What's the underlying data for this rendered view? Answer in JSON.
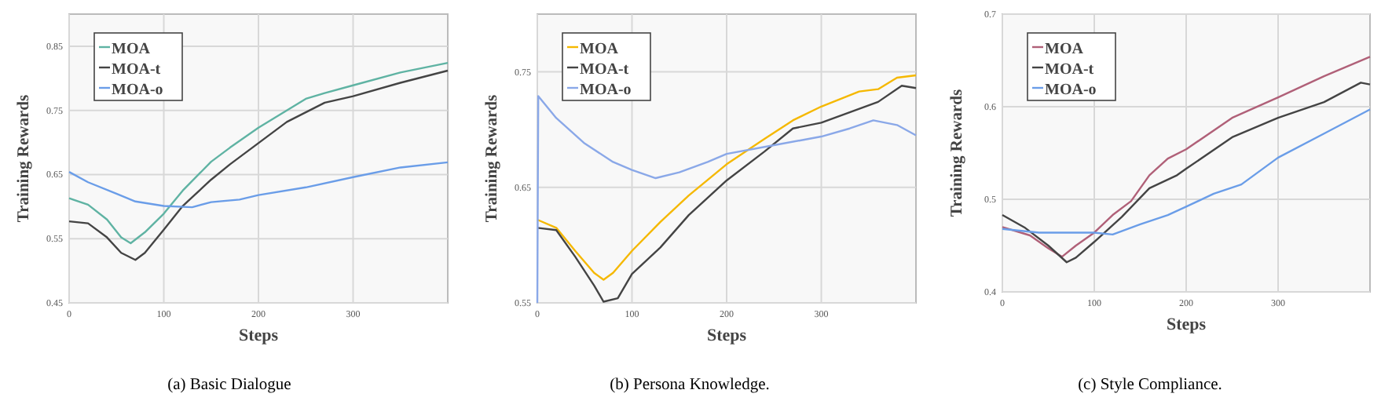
{
  "chart_data": [
    {
      "type": "line",
      "title": "(a)  Basic Dialogue",
      "xlabel": "Steps",
      "ylabel": "Training Rewards",
      "xlim": [
        0,
        400
      ],
      "xticks": [
        0,
        100,
        200,
        300
      ],
      "ylim": [
        0.45,
        0.9
      ],
      "yticks": [
        0.45,
        0.55,
        0.65,
        0.75,
        0.85
      ],
      "grid": true,
      "legend": "top left",
      "marker": "none",
      "line_style": "solid",
      "series": [
        {
          "name": "MOA",
          "color": "#5fb3a3",
          "x": [
            0,
            20,
            40,
            55,
            65,
            80,
            100,
            120,
            150,
            170,
            200,
            250,
            270,
            300,
            350,
            400
          ],
          "values": [
            0.613,
            0.603,
            0.58,
            0.552,
            0.543,
            0.56,
            0.589,
            0.625,
            0.67,
            0.692,
            0.723,
            0.768,
            0.777,
            0.789,
            0.809,
            0.824
          ]
        },
        {
          "name": "MOA-t",
          "color": "#444444",
          "x": [
            0,
            20,
            40,
            55,
            70,
            80,
            100,
            120,
            150,
            170,
            200,
            230,
            270,
            300,
            350,
            400
          ],
          "values": [
            0.577,
            0.574,
            0.552,
            0.528,
            0.517,
            0.528,
            0.564,
            0.601,
            0.642,
            0.666,
            0.699,
            0.732,
            0.762,
            0.772,
            0.793,
            0.812
          ]
        },
        {
          "name": "MOA-o",
          "color": "#6a9de8",
          "x": [
            0,
            20,
            50,
            70,
            100,
            130,
            150,
            180,
            200,
            250,
            300,
            350,
            400
          ],
          "values": [
            0.654,
            0.638,
            0.62,
            0.608,
            0.601,
            0.599,
            0.607,
            0.611,
            0.618,
            0.63,
            0.646,
            0.661,
            0.669
          ]
        }
      ]
    },
    {
      "type": "line",
      "title": "(b)  Persona Knowledge.",
      "xlabel": "Steps",
      "ylabel": "Training Rewards",
      "xlim": [
        0,
        400
      ],
      "xticks": [
        0,
        100,
        200,
        300
      ],
      "ylim": [
        0.55,
        0.8
      ],
      "yticks": [
        0.55,
        0.65,
        0.75
      ],
      "grid": true,
      "legend": "top left",
      "marker": "none",
      "line_style": "solid",
      "series": [
        {
          "name": "MOA",
          "color": "#f5b800",
          "x": [
            0,
            20,
            40,
            60,
            70,
            80,
            100,
            130,
            160,
            200,
            240,
            270,
            300,
            340,
            360,
            380,
            400
          ],
          "values": [
            0.622,
            0.615,
            0.595,
            0.576,
            0.57,
            0.576,
            0.595,
            0.62,
            0.643,
            0.67,
            0.692,
            0.708,
            0.72,
            0.733,
            0.735,
            0.745,
            0.747
          ]
        },
        {
          "name": "MOA-t",
          "color": "#444444",
          "x": [
            0,
            20,
            40,
            60,
            70,
            85,
            100,
            130,
            160,
            200,
            240,
            270,
            300,
            330,
            360,
            385,
            400
          ],
          "values": [
            0.615,
            0.613,
            0.59,
            0.565,
            0.551,
            0.554,
            0.575,
            0.598,
            0.626,
            0.656,
            0.681,
            0.701,
            0.706,
            0.715,
            0.724,
            0.738,
            0.736
          ]
        },
        {
          "name": "MOA-o",
          "color": "#8aa8e8",
          "x": [
            0,
            1,
            20,
            50,
            80,
            100,
            125,
            150,
            180,
            200,
            240,
            280,
            300,
            330,
            355,
            380,
            400
          ],
          "values": [
            0.55,
            0.729,
            0.71,
            0.688,
            0.672,
            0.665,
            0.658,
            0.663,
            0.672,
            0.679,
            0.685,
            0.691,
            0.694,
            0.701,
            0.708,
            0.704,
            0.695
          ]
        }
      ]
    },
    {
      "type": "line",
      "title": "(c)  Style Compliance.",
      "xlabel": "Steps",
      "ylabel": "Training Rewards",
      "xlim": [
        0,
        400
      ],
      "xticks": [
        0,
        100,
        200,
        300
      ],
      "ylim": [
        0.4,
        0.7
      ],
      "yticks": [
        0.4,
        0.5,
        0.6,
        0.7
      ],
      "grid": true,
      "legend": "top left",
      "marker": "none",
      "line_style": "solid",
      "series": [
        {
          "name": "MOA",
          "color": "#b06078",
          "x": [
            0,
            30,
            50,
            65,
            80,
            100,
            120,
            140,
            160,
            180,
            200,
            250,
            300,
            350,
            400
          ],
          "values": [
            0.47,
            0.461,
            0.447,
            0.438,
            0.45,
            0.464,
            0.483,
            0.498,
            0.526,
            0.544,
            0.554,
            0.588,
            0.61,
            0.633,
            0.654
          ]
        },
        {
          "name": "MOA-t",
          "color": "#444444",
          "x": [
            0,
            25,
            50,
            70,
            80,
            100,
            130,
            160,
            190,
            200,
            250,
            300,
            350,
            390,
            400
          ],
          "values": [
            0.483,
            0.469,
            0.45,
            0.432,
            0.437,
            0.454,
            0.481,
            0.512,
            0.526,
            0.533,
            0.567,
            0.588,
            0.605,
            0.626,
            0.624
          ]
        },
        {
          "name": "MOA-o",
          "color": "#6a9de8",
          "x": [
            0,
            40,
            70,
            100,
            120,
            150,
            180,
            200,
            230,
            260,
            300,
            350,
            400
          ],
          "values": [
            0.468,
            0.464,
            0.464,
            0.464,
            0.462,
            0.473,
            0.483,
            0.492,
            0.506,
            0.516,
            0.545,
            0.571,
            0.597
          ]
        }
      ]
    }
  ]
}
